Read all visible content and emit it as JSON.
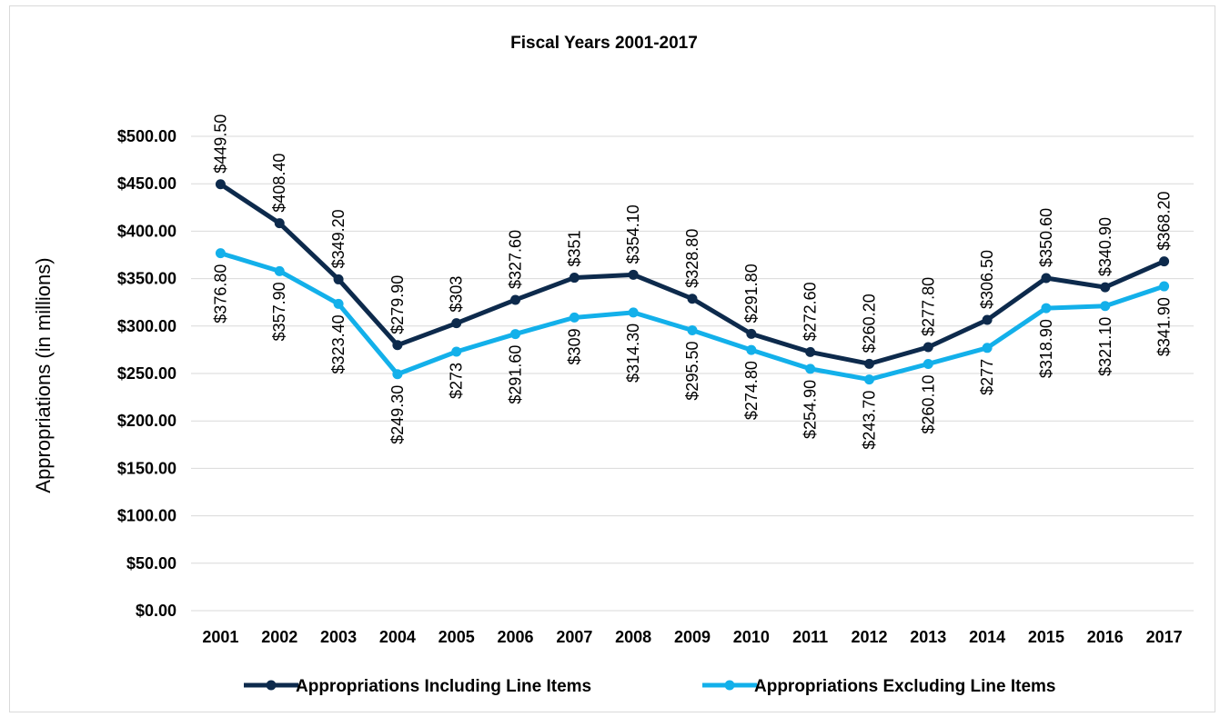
{
  "chart_data": {
    "type": "line",
    "title": "Fiscal Years 2001-2017",
    "xlabel": "",
    "ylabel": "Appropriations (in millions)",
    "ylim": [
      0,
      500
    ],
    "y_ticks": [
      "$0.00",
      "$50.00",
      "$100.00",
      "$150.00",
      "$200.00",
      "$250.00",
      "$300.00",
      "$350.00",
      "$400.00",
      "$450.00",
      "$500.00"
    ],
    "categories": [
      "2001",
      "2002",
      "2003",
      "2004",
      "2005",
      "2006",
      "2007",
      "2008",
      "2009",
      "2010",
      "2011",
      "2012",
      "2013",
      "2014",
      "2015",
      "2016",
      "2017"
    ],
    "grid": true,
    "legend_position": "bottom",
    "series": [
      {
        "name": "Appropriations Including Line Items",
        "color": "#0d2a4c",
        "values": [
          449.5,
          408.4,
          349.2,
          279.9,
          303,
          327.6,
          351,
          354.1,
          328.8,
          291.8,
          272.6,
          260.2,
          277.8,
          306.5,
          350.6,
          340.9,
          368.2
        ],
        "labels": [
          "$449.50",
          "$408.40",
          "$349.20",
          "$279.90",
          "$303",
          "$327.60",
          "$351",
          "$354.10",
          "$328.80",
          "$291.80",
          "$272.60",
          "$260.20",
          "$277.80",
          "$306.50",
          "$350.60",
          "$340.90",
          "$368.20"
        ]
      },
      {
        "name": "Appropriations Excluding Line Items",
        "color": "#13b0ea",
        "values": [
          376.8,
          357.9,
          323.4,
          249.3,
          273,
          291.6,
          309,
          314.3,
          295.5,
          274.8,
          254.9,
          243.7,
          260.1,
          277,
          318.9,
          321.1,
          341.9
        ],
        "labels": [
          "$376.80",
          "$357.90",
          "$323.40",
          "$249.30",
          "$273",
          "$291.60",
          "$309",
          "$314.30",
          "$295.50",
          "$274.80",
          "$254.90",
          "$243.70",
          "$260.10",
          "$277",
          "$318.90",
          "$321.10",
          "$341.90"
        ]
      }
    ]
  }
}
